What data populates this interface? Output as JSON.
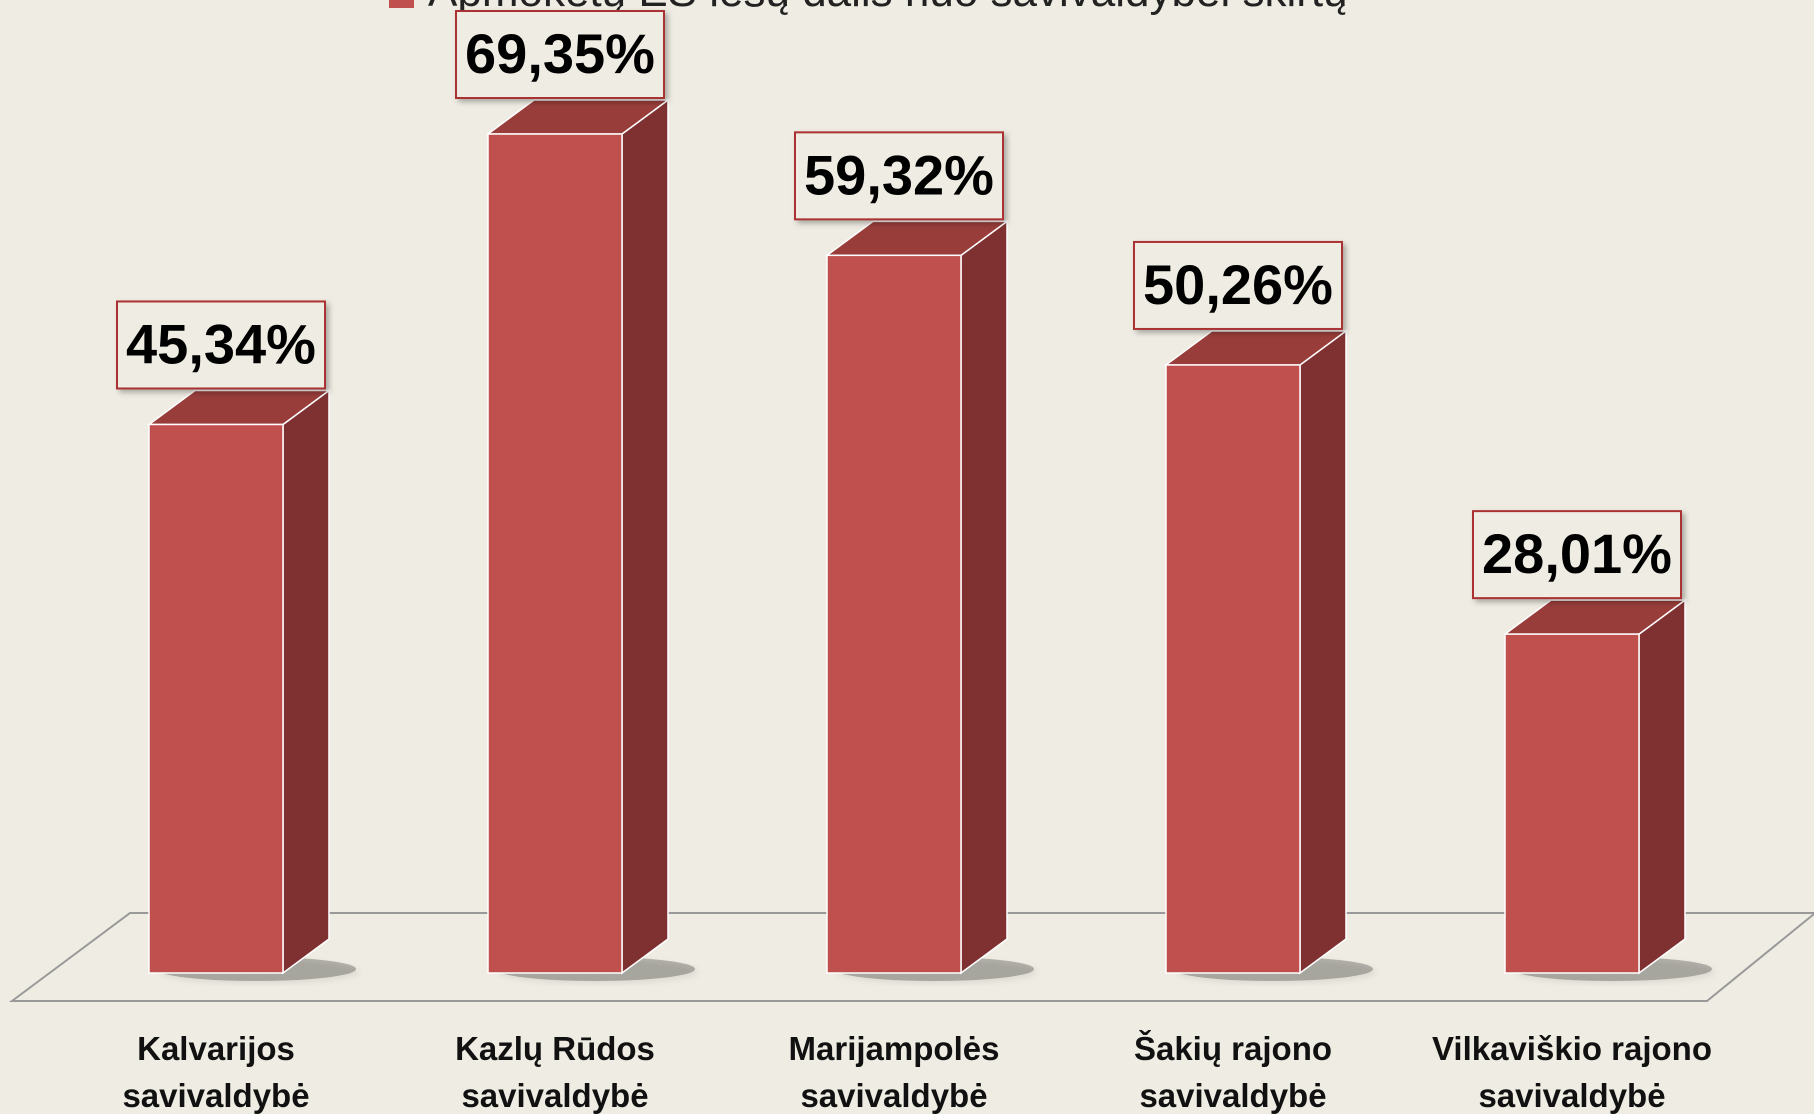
{
  "chart_data": {
    "type": "bar3d",
    "legend": "Apmokėtų ES lėšų dalis nuo savivaldybei skirtų",
    "categories": [
      "Kalvarijos savivaldybė",
      "Kazlų Rūdos savivaldybė",
      "Marijampolės savivaldybė",
      "Šakių rajono savivaldybė",
      "Vilkaviškio rajono savivaldybė"
    ],
    "values": [
      45.34,
      69.35,
      59.32,
      50.26,
      28.01
    ],
    "value_labels": [
      "45,34%",
      "69,35%",
      "59,32%",
      "50,26%",
      "28,01%"
    ],
    "color": "#c0504d"
  }
}
